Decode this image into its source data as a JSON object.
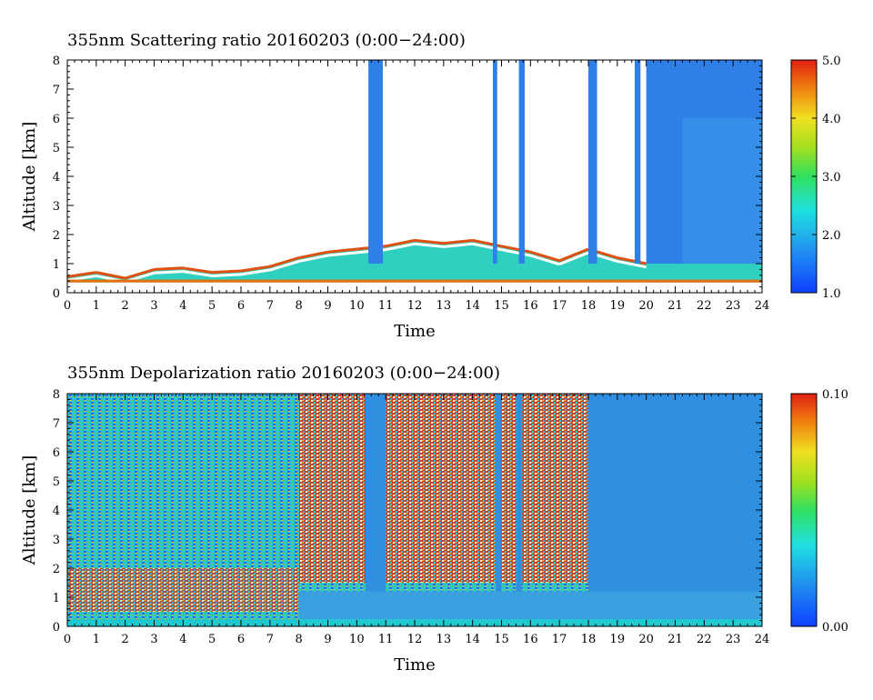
{
  "chart_data": [
    {
      "type": "heatmap",
      "title": "355nm Scattering ratio  20160203 (0:00−24:00)",
      "xlabel": "Time",
      "ylabel": "Altitude [km]",
      "x_ticks": [
        "0",
        "1",
        "2",
        "3",
        "4",
        "5",
        "6",
        "7",
        "8",
        "9",
        "10",
        "11",
        "12",
        "13",
        "14",
        "15",
        "16",
        "17",
        "18",
        "19",
        "20",
        "21",
        "22",
        "23",
        "24"
      ],
      "y_ticks": [
        "0",
        "1",
        "2",
        "3",
        "4",
        "5",
        "6",
        "7",
        "8"
      ],
      "xlim": [
        0,
        24
      ],
      "ylim": [
        0,
        8
      ],
      "colorbar": {
        "min": 1.0,
        "max": 5.0,
        "ticks": [
          "1.0",
          "2.0",
          "3.0",
          "4.0",
          "5.0"
        ],
        "tick_values": [
          1.0,
          2.0,
          3.0,
          4.0,
          5.0
        ]
      },
      "features": {
        "boundary_layer_top_km": [
          [
            0,
            0.55
          ],
          [
            1,
            0.7
          ],
          [
            2,
            0.5
          ],
          [
            3,
            0.8
          ],
          [
            4,
            0.85
          ],
          [
            5,
            0.7
          ],
          [
            6,
            0.75
          ],
          [
            7,
            0.9
          ],
          [
            8,
            1.2
          ],
          [
            9,
            1.4
          ],
          [
            10,
            1.5
          ],
          [
            11,
            1.6
          ],
          [
            12,
            1.8
          ],
          [
            13,
            1.7
          ],
          [
            14,
            1.8
          ],
          [
            15,
            1.6
          ],
          [
            16,
            1.4
          ],
          [
            17,
            1.1
          ],
          [
            18,
            1.5
          ],
          [
            19,
            1.2
          ],
          [
            20,
            1.0
          ],
          [
            24,
            1.0
          ]
        ],
        "cloud_columns_hours": [
          [
            10.4,
            10.9
          ],
          [
            14.7,
            14.85
          ],
          [
            15.6,
            15.8
          ],
          [
            18.0,
            18.3
          ],
          [
            19.6,
            19.8
          ]
        ],
        "clear_sky_blue_region_hours": [
          20.0,
          24.0
        ]
      }
    },
    {
      "type": "heatmap",
      "title": "355nm Depolarization ratio  20160203 (0:00−24:00)",
      "xlabel": "Time",
      "ylabel": "Altitude [km]",
      "x_ticks": [
        "0",
        "1",
        "2",
        "3",
        "4",
        "5",
        "6",
        "7",
        "8",
        "9",
        "10",
        "11",
        "12",
        "13",
        "14",
        "15",
        "16",
        "17",
        "18",
        "19",
        "20",
        "21",
        "22",
        "23",
        "24"
      ],
      "y_ticks": [
        "0",
        "1",
        "2",
        "3",
        "4",
        "5",
        "6",
        "7",
        "8"
      ],
      "xlim": [
        0,
        24
      ],
      "ylim": [
        0,
        8
      ],
      "colorbar": {
        "min": 0.0,
        "max": 0.1,
        "ticks": [
          "0.00",
          "0.10"
        ],
        "tick_values": [
          0.0,
          0.1
        ]
      },
      "features": {
        "noisy_high_depol_hours": [
          0,
          18
        ],
        "low_depol_cloud_columns_hours": [
          [
            10.3,
            11.0
          ],
          [
            14.8,
            15.0
          ],
          [
            15.5,
            15.7
          ]
        ],
        "low_depol_clear_region_hours": [
          18.0,
          24.0
        ]
      }
    }
  ],
  "colors": {
    "low": "#0040ff",
    "mid": "#20e0e0",
    "mid2": "#40e020",
    "high2": "#f0d020",
    "high": "#e02000"
  }
}
